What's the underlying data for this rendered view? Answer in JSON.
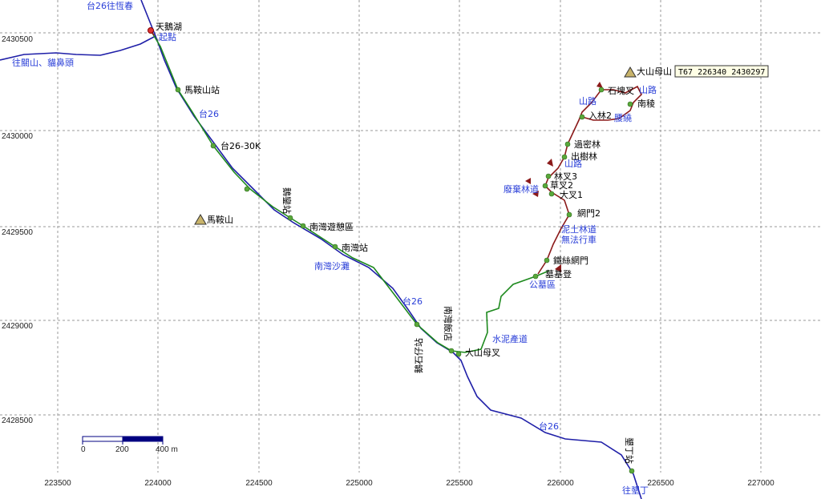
{
  "coordinate_readout": "T67  226340  2430297",
  "x_ticks": [
    "223500",
    "224000",
    "224500",
    "225000",
    "225500",
    "226000",
    "226500",
    "227000"
  ],
  "y_ticks": [
    "2430500",
    "2430000",
    "2429500",
    "2429000",
    "2428500"
  ],
  "scalebar": {
    "labels": [
      "0",
      "200",
      "400 m"
    ]
  },
  "road_labels": {
    "tai26_to_hengchun": "台26往恆春",
    "to_guanshan": "往關山、貓鼻頭",
    "tai26_a": "台26",
    "tai26_b": "台26",
    "tai26_c": "台26",
    "to_kenting": "往墾丁",
    "nanwan_beach": "南灣沙灘",
    "start_point": "起點",
    "cemetery": "公墓區",
    "cement_road": "水泥產道",
    "mud_forest_road": "泥土林道",
    "no_vehicle": "無法行車",
    "abandoned_forest_road": "廢棄林道",
    "mountain_road_left": "山路",
    "mountain_road_mid": "山路",
    "mountain_road_right": "山路",
    "traverse": "腰繞"
  },
  "places": {
    "tianyahu": "天鵝湖",
    "maanshan_station": "馬鞍山站",
    "k30": "台26-30K",
    "maanshan": "馬鞍山",
    "nanwan_rest": "南灣遊憩區",
    "nanwan_station": "南灣站",
    "station_vertical": "鵝鑾站",
    "nanwan_store": "南灣飯店",
    "dashimu_junction": "大山母叉",
    "kenting_store": "墾丁站",
    "cemetery_stairs": "墓基登",
    "iron_gate": "鐵絲網門",
    "net_gate2": "網門2",
    "fork1": "大叉1",
    "grass_fork2": "草叉2",
    "forest_fork3": "林叉3",
    "tree_grove": "出樹林",
    "past_forest": "過密林",
    "enter_forest2": "入林2",
    "south_ridge": "南稜",
    "stone_fork": "石塊叉",
    "dashimushan": "大山母山",
    "stone_rock": "鵝石仔站"
  }
}
